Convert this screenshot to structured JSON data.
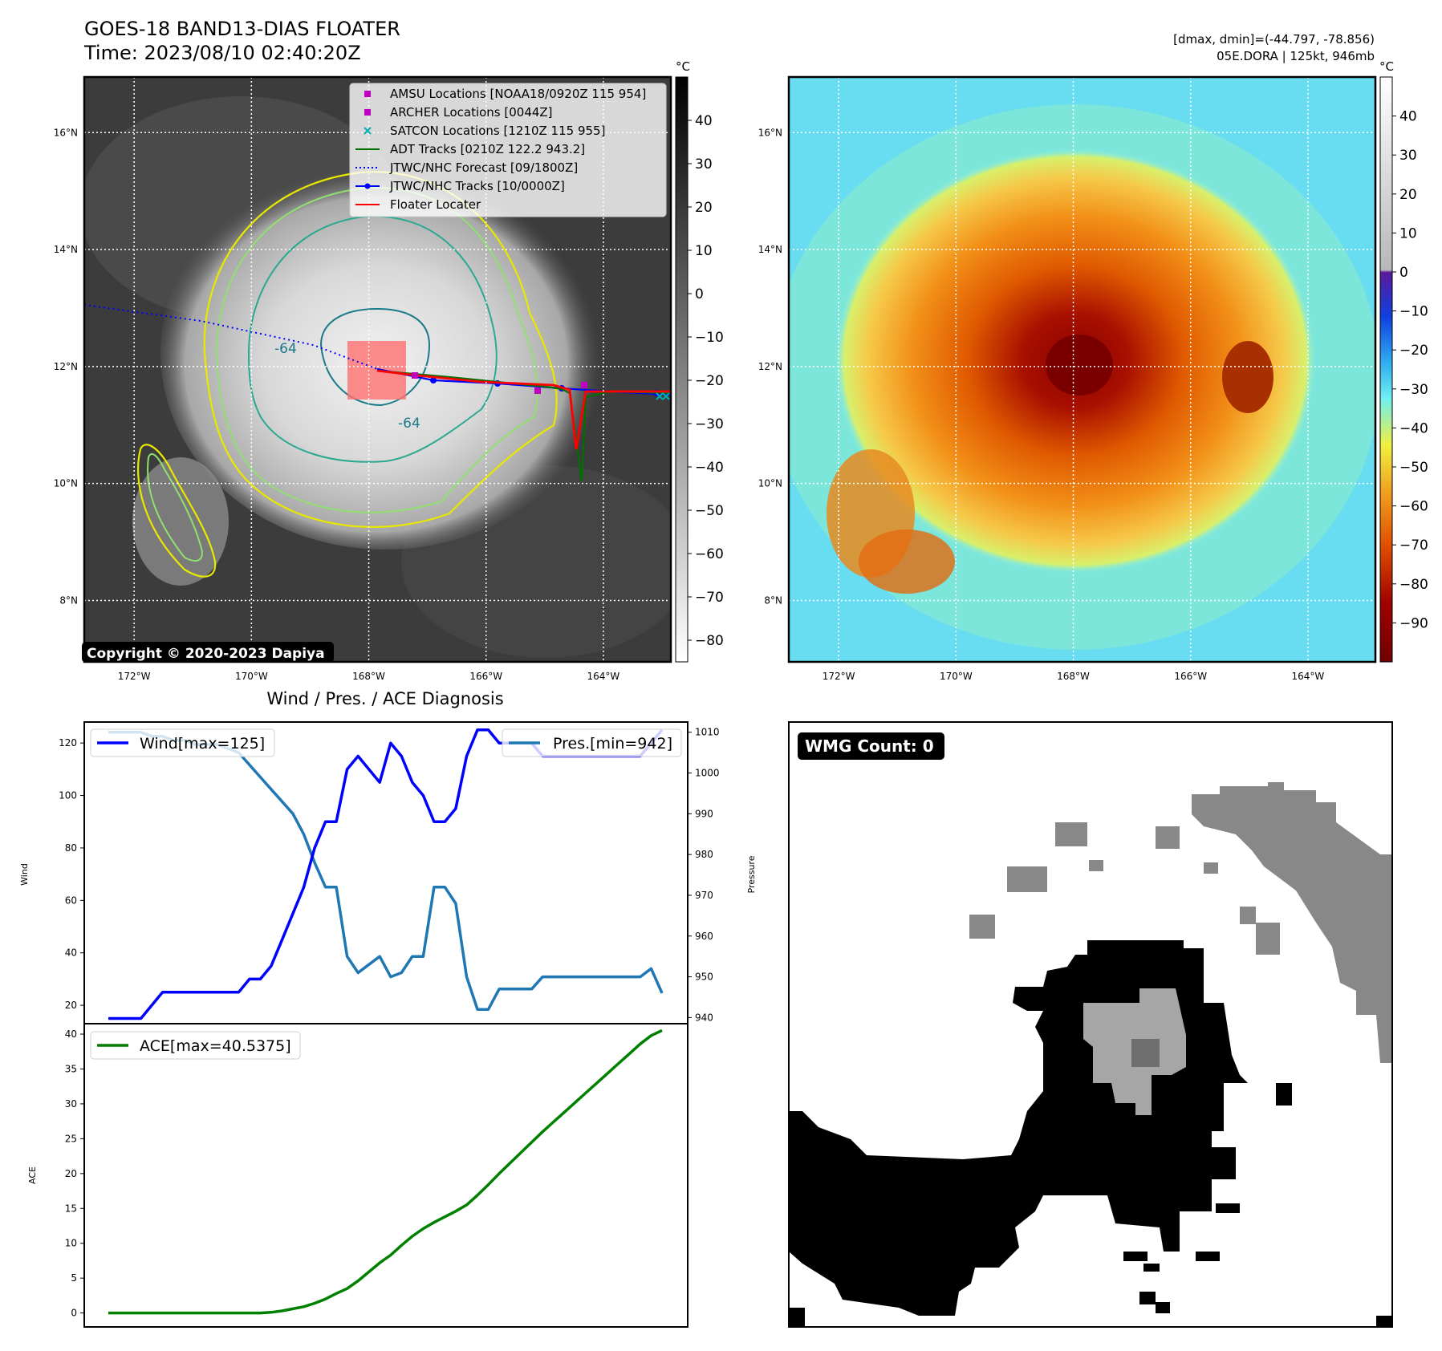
{
  "header": {
    "title": "GOES-18 BAND13-DIAS FLOATER",
    "time": "Time: 2023/08/10 02:40:20Z",
    "dmaxmin": "[dmax, dmin]=(-44.797, -78.856)",
    "storm": "05E.DORA | 125kt, 946mb",
    "copyright": "Copyright © 2020-2023 Dapiya"
  },
  "map": {
    "lon_ticks": [
      -172,
      -170,
      -168,
      -166,
      -164
    ],
    "lon_labels": [
      "172°W",
      "170°W",
      "168°W",
      "166°W",
      "164°W"
    ],
    "lat_ticks": [
      8,
      10,
      12,
      14,
      16
    ],
    "lat_labels": [
      "8°N",
      "10°N",
      "12°N",
      "14°N",
      "16°N"
    ],
    "lon_range": [
      -172.85,
      -162.85
    ],
    "lat_range": [
      6.95,
      16.95
    ],
    "contour_labels": [
      "-64",
      "-64"
    ]
  },
  "legend": [
    {
      "label": "AMSU Locations [NOAA18/0920Z 115 954]",
      "color": "#c000c0",
      "marker": "square"
    },
    {
      "label": "ARCHER Locations [0044Z]",
      "color": "#c000c0",
      "marker": "square"
    },
    {
      "label": "SATCON Locations [1210Z 115 955]",
      "color": "#00b0b0",
      "marker": "x"
    },
    {
      "label": "ADT Tracks [0210Z 122.2 943.2]",
      "color": "#007000",
      "marker": "line"
    },
    {
      "label": "JTWC/NHC Forecast [09/1800Z]",
      "color": "#0000ff",
      "marker": "dotted"
    },
    {
      "label": "JTWC/NHC Tracks [10/0000Z]",
      "color": "#0000ff",
      "marker": "line-dot"
    },
    {
      "label": "Floater Locater",
      "color": "#ff0000",
      "marker": "line"
    }
  ],
  "colorbar_gray": {
    "unit": "°C",
    "ticks": [
      40,
      30,
      20,
      10,
      0,
      -10,
      -20,
      -30,
      -40,
      -50,
      -60,
      -70,
      -80
    ],
    "range": [
      -85,
      50
    ]
  },
  "colorbar_color": {
    "unit": "°C",
    "ticks": [
      40,
      30,
      20,
      10,
      0,
      -10,
      -20,
      -30,
      -40,
      -50,
      -60,
      -70,
      -80,
      -90
    ],
    "range": [
      -100,
      50
    ]
  },
  "wmg": {
    "label": "WMG Count: 0"
  },
  "colors": {
    "wind": "#0000ff",
    "pressure": "#1f77b4",
    "ace": "#008000"
  },
  "chart_data": [
    {
      "type": "line",
      "title": "Wind / Pres. / ACE Diagnosis",
      "ylabel": "Wind",
      "y2label": "Pressure",
      "ylim": [
        13,
        128
      ],
      "y2lim": [
        938.5,
        1012.5
      ],
      "yticks": [
        20,
        40,
        60,
        80,
        100,
        120
      ],
      "y2ticks": [
        940,
        950,
        960,
        970,
        980,
        990,
        1000,
        1010
      ],
      "series": [
        {
          "name": "Wind[max=125]",
          "axis": "left",
          "values": [
            15,
            15,
            15,
            15,
            20,
            25,
            25,
            25,
            25,
            25,
            25,
            25,
            25,
            30,
            30,
            35,
            45,
            55,
            65,
            80,
            90,
            90,
            110,
            115,
            110,
            105,
            120,
            115,
            105,
            100,
            90,
            90,
            95,
            115,
            125,
            125,
            120,
            120,
            120,
            120,
            115,
            115,
            115,
            115,
            115,
            115,
            115,
            115,
            115,
            115,
            120,
            125
          ]
        },
        {
          "name": "Pres.[min=942]",
          "axis": "right",
          "values": [
            1010,
            1010,
            1010,
            1010,
            1009,
            1009,
            1008,
            1008,
            1007,
            1007,
            1007,
            1006,
            1005,
            1002,
            999,
            996,
            993,
            990,
            985,
            978,
            972,
            972,
            955,
            951,
            953,
            955,
            950,
            951,
            955,
            955,
            972,
            972,
            968,
            950,
            942,
            942,
            947,
            947,
            947,
            947,
            950,
            950,
            950,
            950,
            950,
            950,
            950,
            950,
            950,
            950,
            952,
            946
          ]
        }
      ]
    },
    {
      "type": "line",
      "ylabel": "ACE",
      "ylim": [
        -2,
        41.5
      ],
      "yticks": [
        0,
        5,
        10,
        15,
        20,
        25,
        30,
        35,
        40
      ],
      "series": [
        {
          "name": "ACE[max=40.5375]",
          "values": [
            0,
            0,
            0,
            0,
            0,
            0,
            0,
            0,
            0,
            0,
            0,
            0,
            0,
            0,
            0,
            0.1,
            0.3,
            0.6,
            0.9,
            1.4,
            2.0,
            2.8,
            3.5,
            4.6,
            5.9,
            7.2,
            8.3,
            9.7,
            11.0,
            12.1,
            13.0,
            13.8,
            14.6,
            15.5,
            16.9,
            18.4,
            20.0,
            21.5,
            23.0,
            24.5,
            26.0,
            27.4,
            28.8,
            30.2,
            31.6,
            33.0,
            34.4,
            35.8,
            37.2,
            38.6,
            39.8,
            40.5375
          ]
        }
      ]
    }
  ]
}
